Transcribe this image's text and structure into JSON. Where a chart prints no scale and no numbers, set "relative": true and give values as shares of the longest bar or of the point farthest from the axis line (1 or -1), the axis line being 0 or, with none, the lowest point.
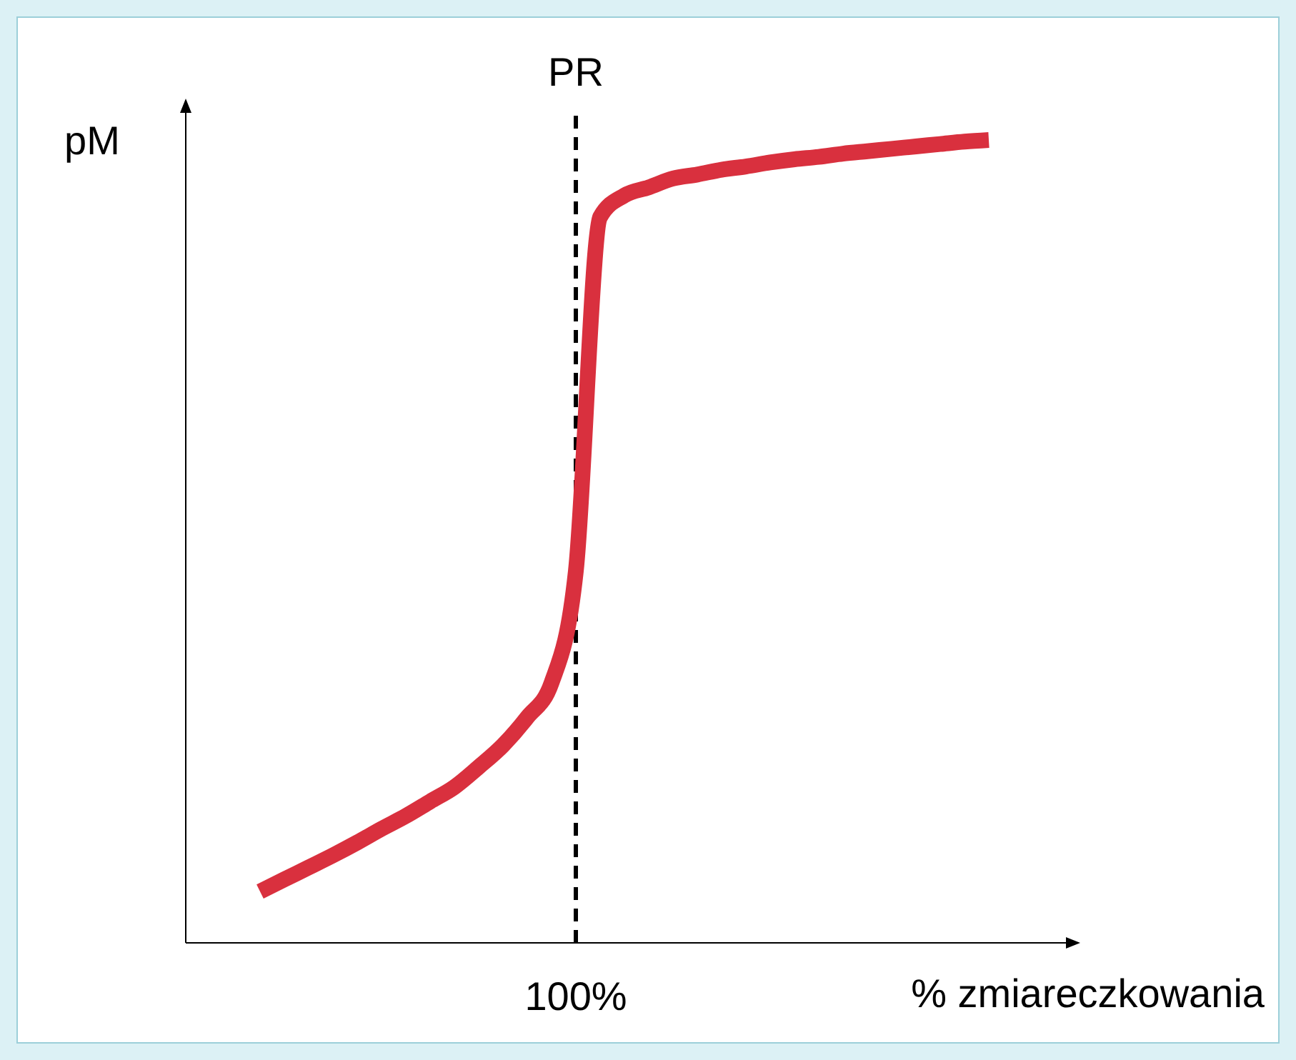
{
  "chart_data": {
    "type": "line",
    "relative": true,
    "xlabel": "% zmiareczkowania",
    "ylabel": "pM",
    "categories": [
      null,
      null,
      null,
      null,
      null,
      null,
      null,
      null,
      null,
      null,
      null,
      null,
      null,
      null,
      null,
      null,
      null,
      null,
      null,
      null,
      null,
      null,
      null,
      null,
      null,
      null,
      null,
      null,
      null,
      null,
      null
    ],
    "series": [
      {
        "color": "#d9303e",
        "values": [
          0.064,
          0.079,
          0.094,
          0.109,
          0.125,
          0.142,
          0.158,
          0.176,
          0.194,
          0.219,
          0.246,
          0.281,
          0.324,
          0.463,
          0.904,
          0.931,
          0.941,
          0.952,
          0.957,
          0.963,
          0.967,
          0.972,
          0.976,
          0.979,
          0.983,
          0.986,
          0.989,
          0.992,
          0.995,
          0.998,
          1
        ]
      }
    ],
    "annotations": [
      "PR",
      "100%"
    ]
  }
}
